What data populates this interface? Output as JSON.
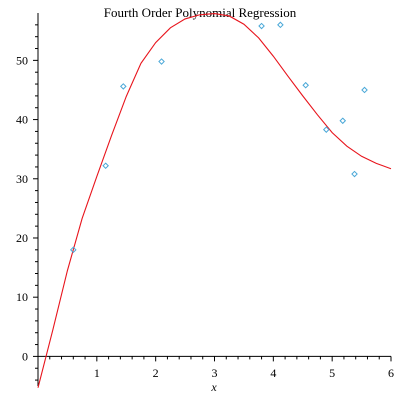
{
  "chart_data": {
    "type": "scatter",
    "title": "Fourth Order Polynomial Regression",
    "xlabel": "x",
    "ylabel": "",
    "xlim": [
      0,
      6
    ],
    "ylim": [
      -5,
      58
    ],
    "grid": false,
    "legend": "none",
    "x_ticks": [
      {
        "value": 1,
        "label": "1"
      },
      {
        "value": 2,
        "label": "2"
      },
      {
        "value": 3,
        "label": "3"
      },
      {
        "value": 4,
        "label": "4"
      },
      {
        "value": 5,
        "label": "5"
      },
      {
        "value": 6,
        "label": "6"
      }
    ],
    "y_ticks": [
      {
        "value": 0,
        "label": "0"
      },
      {
        "value": 10,
        "label": "10"
      },
      {
        "value": 20,
        "label": "20"
      },
      {
        "value": 30,
        "label": "30"
      },
      {
        "value": 40,
        "label": "40"
      },
      {
        "value": 50,
        "label": "50"
      }
    ],
    "series": [
      {
        "kind": "points",
        "marker": "diamond",
        "color": "#4aa8d8",
        "x": [
          0.6,
          1.15,
          1.45,
          2.1,
          3.8,
          4.12,
          4.55,
          4.9,
          5.18,
          5.38,
          5.55
        ],
        "y": [
          18,
          32.2,
          45.6,
          49.8,
          55.8,
          56,
          45.8,
          38.3,
          39.8,
          30.8,
          45
        ]
      },
      {
        "kind": "curve",
        "color": "#e8141c",
        "x": [
          0,
          0.25,
          0.5,
          0.75,
          1,
          1.25,
          1.5,
          1.75,
          2,
          2.25,
          2.5,
          2.75,
          3,
          3.25,
          3.5,
          3.75,
          4,
          4.25,
          4.5,
          4.75,
          5,
          5.25,
          5.5,
          5.75,
          6
        ],
        "y": [
          -5.3,
          4.4,
          14.5,
          23.3,
          30.4,
          37.3,
          43.9,
          49.5,
          53.0,
          55.5,
          57.0,
          57.7,
          57.9,
          57.5,
          56.1,
          53.8,
          50.7,
          47.3,
          44.0,
          40.8,
          37.8,
          35.5,
          33.8,
          32.6,
          31.7
        ]
      }
    ]
  }
}
